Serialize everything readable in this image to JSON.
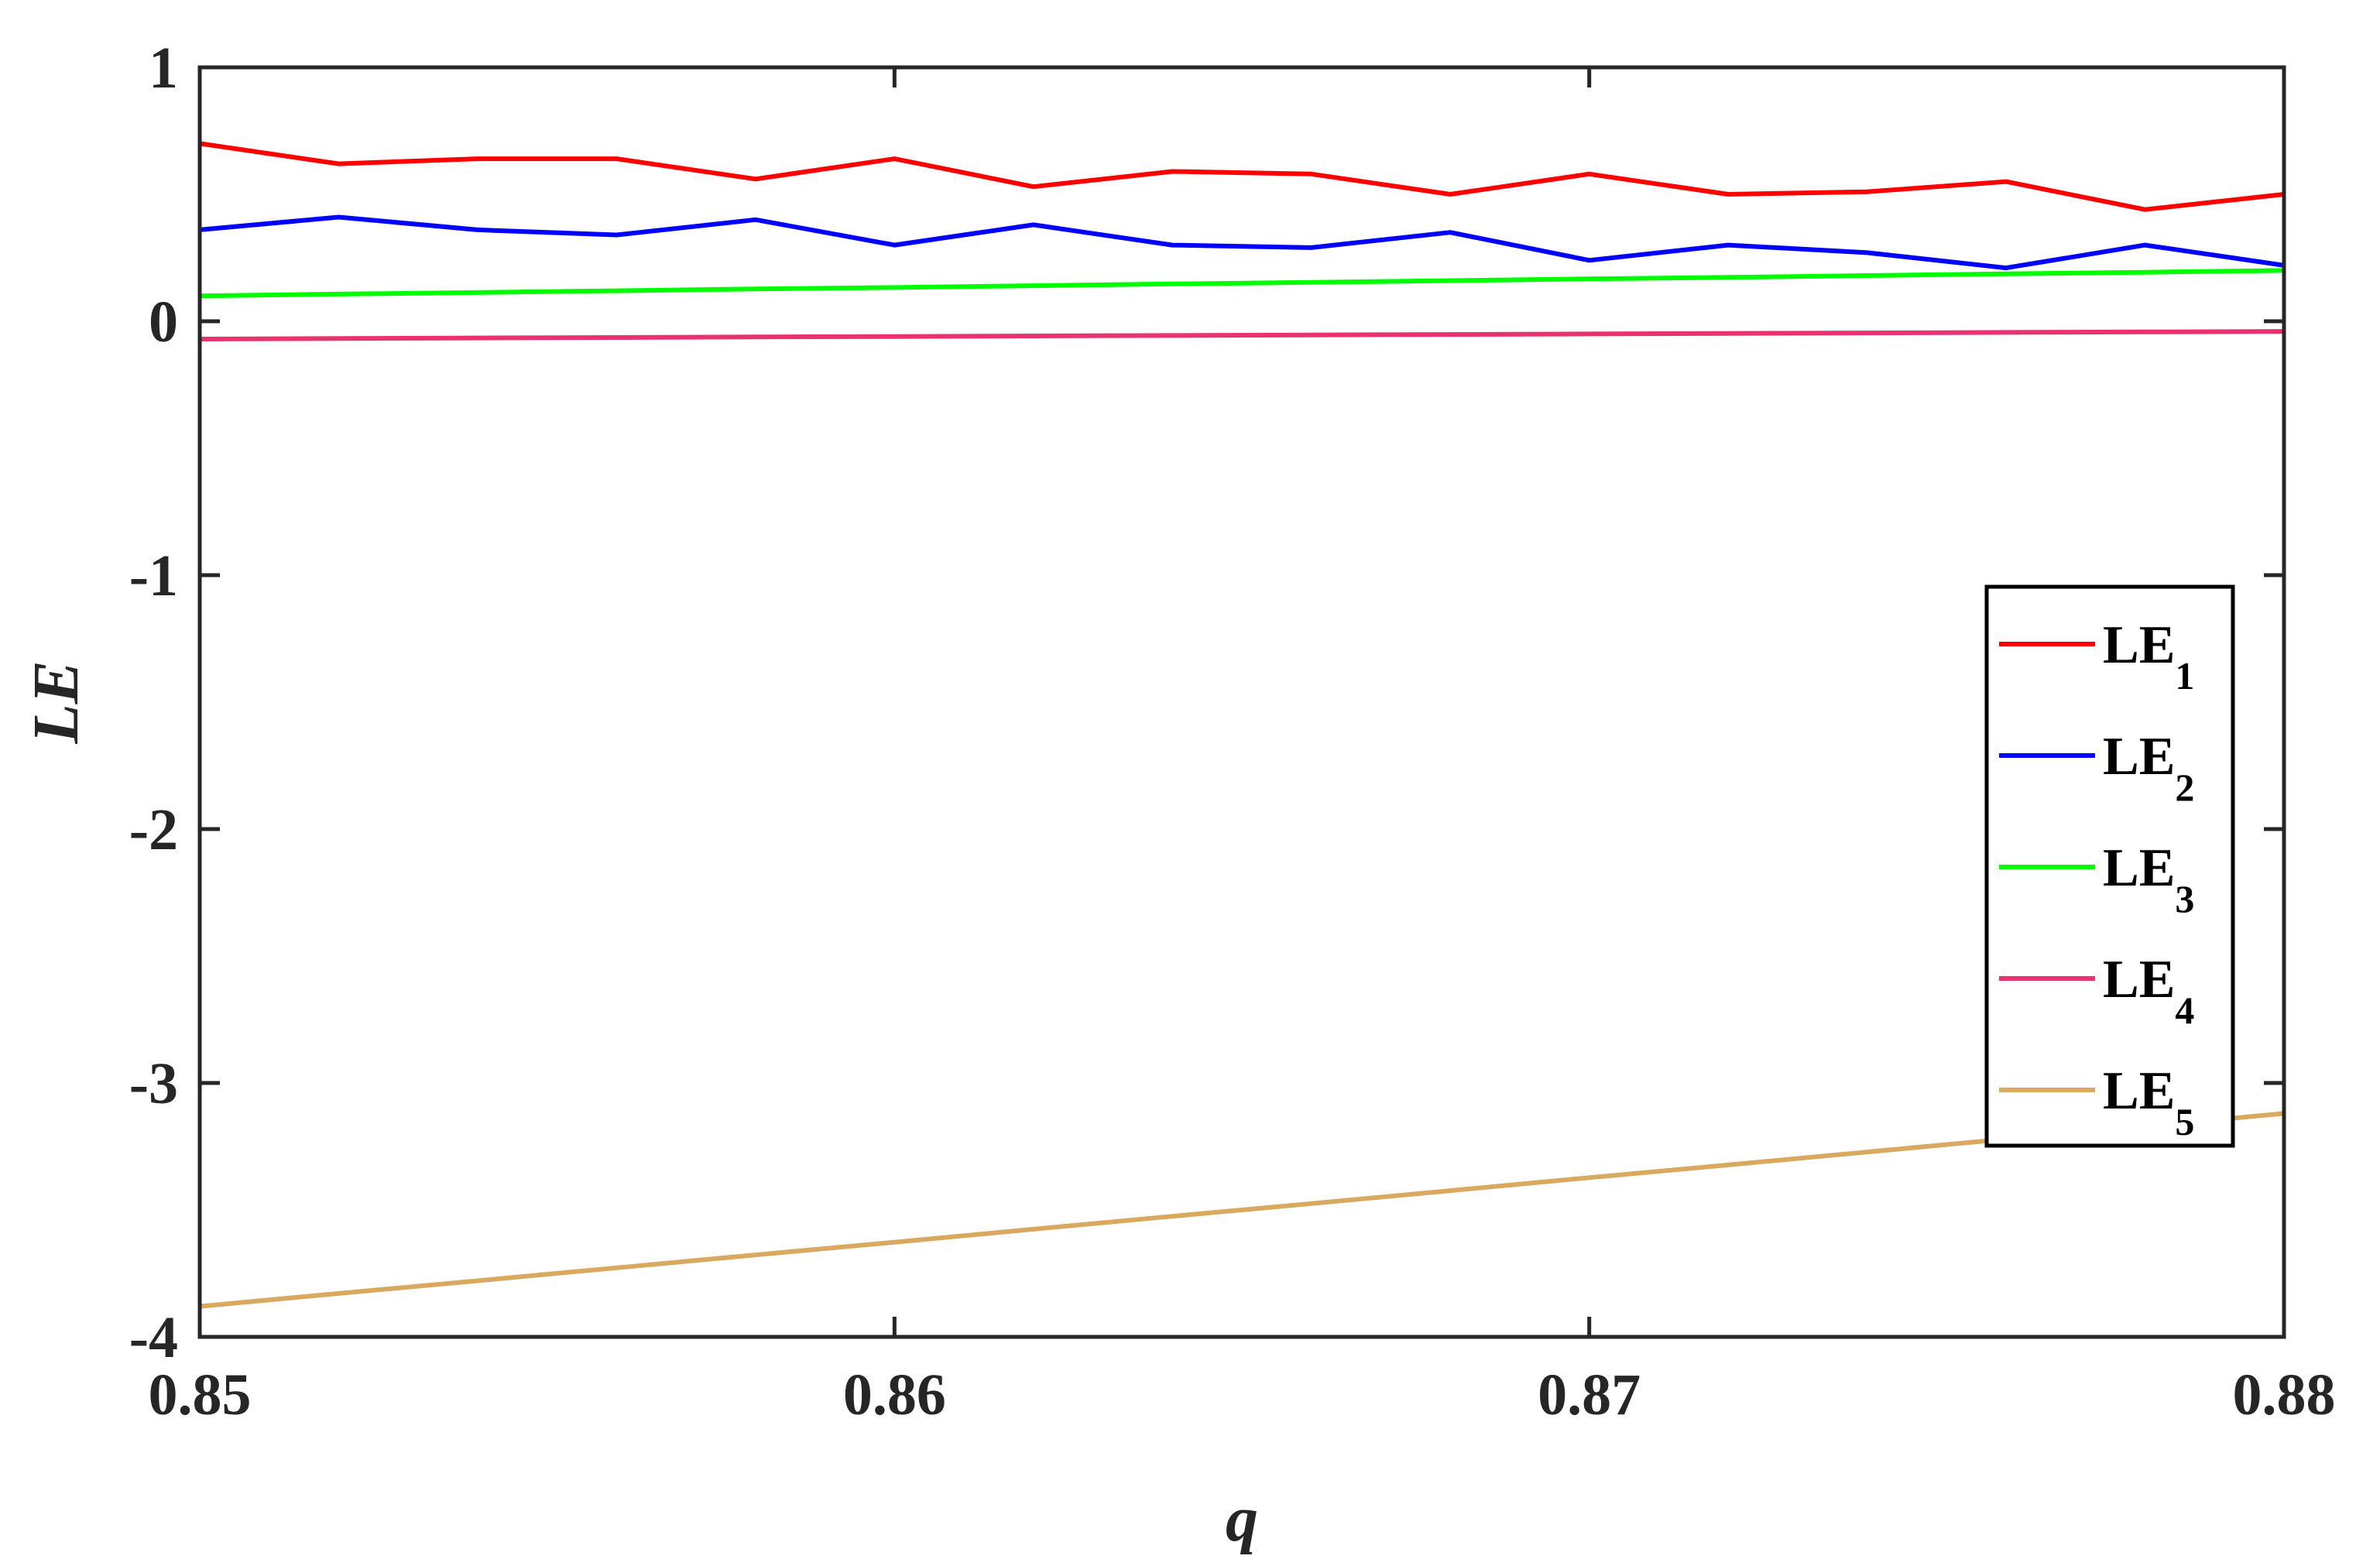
{
  "chart_data": {
    "type": "line",
    "title": "",
    "xlabel": "q",
    "ylabel": "LE",
    "xlim": [
      0.85,
      0.88
    ],
    "ylim": [
      -4,
      1
    ],
    "xticks": [
      "0.85",
      "0.86",
      "0.87",
      "0.88"
    ],
    "yticks": [
      "1",
      "0",
      "-1",
      "-2",
      "-3",
      "-4"
    ],
    "grid": false,
    "legend_position": "center-right",
    "x": [
      0.85,
      0.852,
      0.854,
      0.856,
      0.858,
      0.86,
      0.862,
      0.864,
      0.866,
      0.868,
      0.87,
      0.872,
      0.874,
      0.876,
      0.878,
      0.88
    ],
    "series": [
      {
        "name": "LE",
        "subscript": "1",
        "color": "#ff0000",
        "values": [
          0.7,
          0.62,
          0.64,
          0.64,
          0.56,
          0.64,
          0.53,
          0.59,
          0.58,
          0.5,
          0.58,
          0.5,
          0.51,
          0.55,
          0.44,
          0.5
        ]
      },
      {
        "name": "LE",
        "subscript": "2",
        "color": "#0000ff",
        "values": [
          0.36,
          0.41,
          0.36,
          0.34,
          0.4,
          0.3,
          0.38,
          0.3,
          0.29,
          0.35,
          0.24,
          0.3,
          0.27,
          0.21,
          0.3,
          0.22
        ]
      },
      {
        "name": "LE",
        "subscript": "3",
        "color": "#00ff00",
        "values": [
          0.1,
          0.107,
          0.113,
          0.12,
          0.127,
          0.133,
          0.14,
          0.147,
          0.153,
          0.16,
          0.167,
          0.173,
          0.18,
          0.187,
          0.193,
          0.2
        ]
      },
      {
        "name": "LE",
        "subscript": "4",
        "color": "#e8336e",
        "values": [
          -0.07,
          -0.068,
          -0.066,
          -0.064,
          -0.062,
          -0.06,
          -0.058,
          -0.056,
          -0.054,
          -0.052,
          -0.05,
          -0.048,
          -0.046,
          -0.044,
          -0.042,
          -0.04
        ]
      },
      {
        "name": "LE",
        "subscript": "5",
        "color": "#d9a95f",
        "values": [
          -3.88,
          -3.829,
          -3.779,
          -3.728,
          -3.677,
          -3.627,
          -3.576,
          -3.525,
          -3.475,
          -3.424,
          -3.373,
          -3.323,
          -3.272,
          -3.221,
          -3.171,
          -3.12
        ]
      }
    ]
  }
}
